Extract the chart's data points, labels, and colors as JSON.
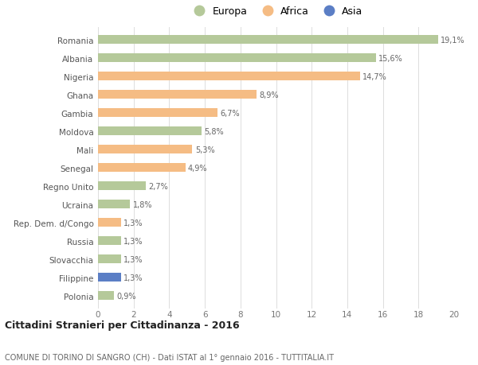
{
  "countries": [
    "Romania",
    "Albania",
    "Nigeria",
    "Ghana",
    "Gambia",
    "Moldova",
    "Mali",
    "Senegal",
    "Regno Unito",
    "Ucraina",
    "Rep. Dem. d/Congo",
    "Russia",
    "Slovacchia",
    "Filippine",
    "Polonia"
  ],
  "values": [
    19.1,
    15.6,
    14.7,
    8.9,
    6.7,
    5.8,
    5.3,
    4.9,
    2.7,
    1.8,
    1.3,
    1.3,
    1.3,
    1.3,
    0.9
  ],
  "labels": [
    "19,1%",
    "15,6%",
    "14,7%",
    "8,9%",
    "6,7%",
    "5,8%",
    "5,3%",
    "4,9%",
    "2,7%",
    "1,8%",
    "1,3%",
    "1,3%",
    "1,3%",
    "1,3%",
    "0,9%"
  ],
  "continents": [
    "Europa",
    "Europa",
    "Africa",
    "Africa",
    "Africa",
    "Europa",
    "Africa",
    "Africa",
    "Europa",
    "Europa",
    "Africa",
    "Europa",
    "Europa",
    "Asia",
    "Europa"
  ],
  "colors": {
    "Europa": "#b5c99a",
    "Africa": "#f5bc84",
    "Asia": "#5b7ec5"
  },
  "xlim": [
    0,
    20
  ],
  "xticks": [
    0,
    2,
    4,
    6,
    8,
    10,
    12,
    14,
    16,
    18,
    20
  ],
  "title": "Cittadini Stranieri per Cittadinanza - 2016",
  "subtitle": "COMUNE DI TORINO DI SANGRO (CH) - Dati ISTAT al 1° gennaio 2016 - TUTTITALIA.IT",
  "bg_color": "#ffffff",
  "grid_color": "#dddddd",
  "bar_height": 0.5
}
